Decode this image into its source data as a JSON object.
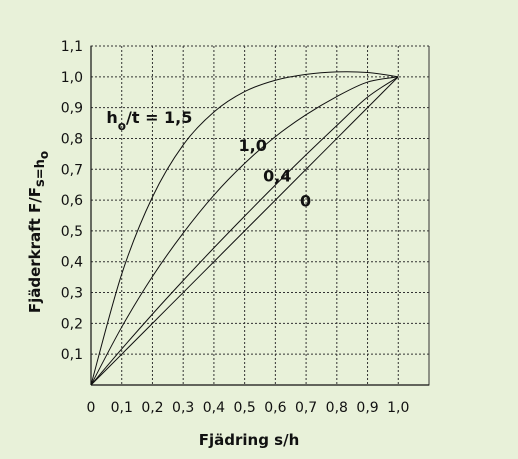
{
  "chart_data": {
    "type": "line",
    "xlabel": "Fjädring s/h",
    "ylabel": {
      "parts": [
        {
          "text": "Fjäderkraft F/F",
          "sub": false
        },
        {
          "text": "s=h",
          "sub": true
        },
        {
          "text": "o",
          "sub": true,
          "subsub": true
        }
      ]
    },
    "xlim": [
      0,
      1.1
    ],
    "ylim": [
      0,
      1.1
    ],
    "xticks": [
      "0",
      "0,1",
      "0,2",
      "0,3",
      "0,4",
      "0,5",
      "0,6",
      "0,7",
      "0,8",
      "0,9",
      "1,0"
    ],
    "yticks": [
      "0,1",
      "0,2",
      "0,3",
      "0,4",
      "0,5",
      "0,6",
      "0,7",
      "0,8",
      "0,9",
      "1,0",
      "1,1"
    ],
    "grid": true,
    "series": [
      {
        "name": "1,5",
        "label_parts": [
          {
            "text": "h",
            "sub": false
          },
          {
            "text": "o",
            "sub": true
          },
          {
            "text": "/t = 1,5",
            "sub": false
          }
        ],
        "x": [
          0,
          0.1,
          0.2,
          0.3,
          0.4,
          0.5,
          0.6,
          0.7,
          0.8,
          0.9,
          1.0
        ],
        "y": [
          0,
          0.36,
          0.61,
          0.779,
          0.886,
          0.952,
          0.989,
          1.008,
          1.016,
          1.014,
          1.0
        ]
      },
      {
        "name": "1,0",
        "x": [
          0,
          0.1,
          0.2,
          0.3,
          0.4,
          0.5,
          0.6,
          0.7,
          0.8,
          0.9,
          1.0
        ],
        "y": [
          0,
          0.188,
          0.352,
          0.493,
          0.616,
          0.719,
          0.806,
          0.877,
          0.936,
          0.983,
          1.0
        ]
      },
      {
        "name": "0,4",
        "x": [
          0,
          0.1,
          0.2,
          0.3,
          0.4,
          0.5,
          0.6,
          0.7,
          0.8,
          0.9,
          1.0
        ],
        "y": [
          0,
          0.117,
          0.23,
          0.339,
          0.445,
          0.548,
          0.649,
          0.747,
          0.842,
          0.934,
          1.0
        ]
      },
      {
        "name": "0",
        "x": [
          0,
          0.1,
          0.2,
          0.3,
          0.4,
          0.5,
          0.6,
          0.7,
          0.8,
          0.9,
          1.0
        ],
        "y": [
          0,
          0.1,
          0.2,
          0.3,
          0.4,
          0.5,
          0.6,
          0.7,
          0.8,
          0.9,
          1.0
        ]
      }
    ]
  }
}
